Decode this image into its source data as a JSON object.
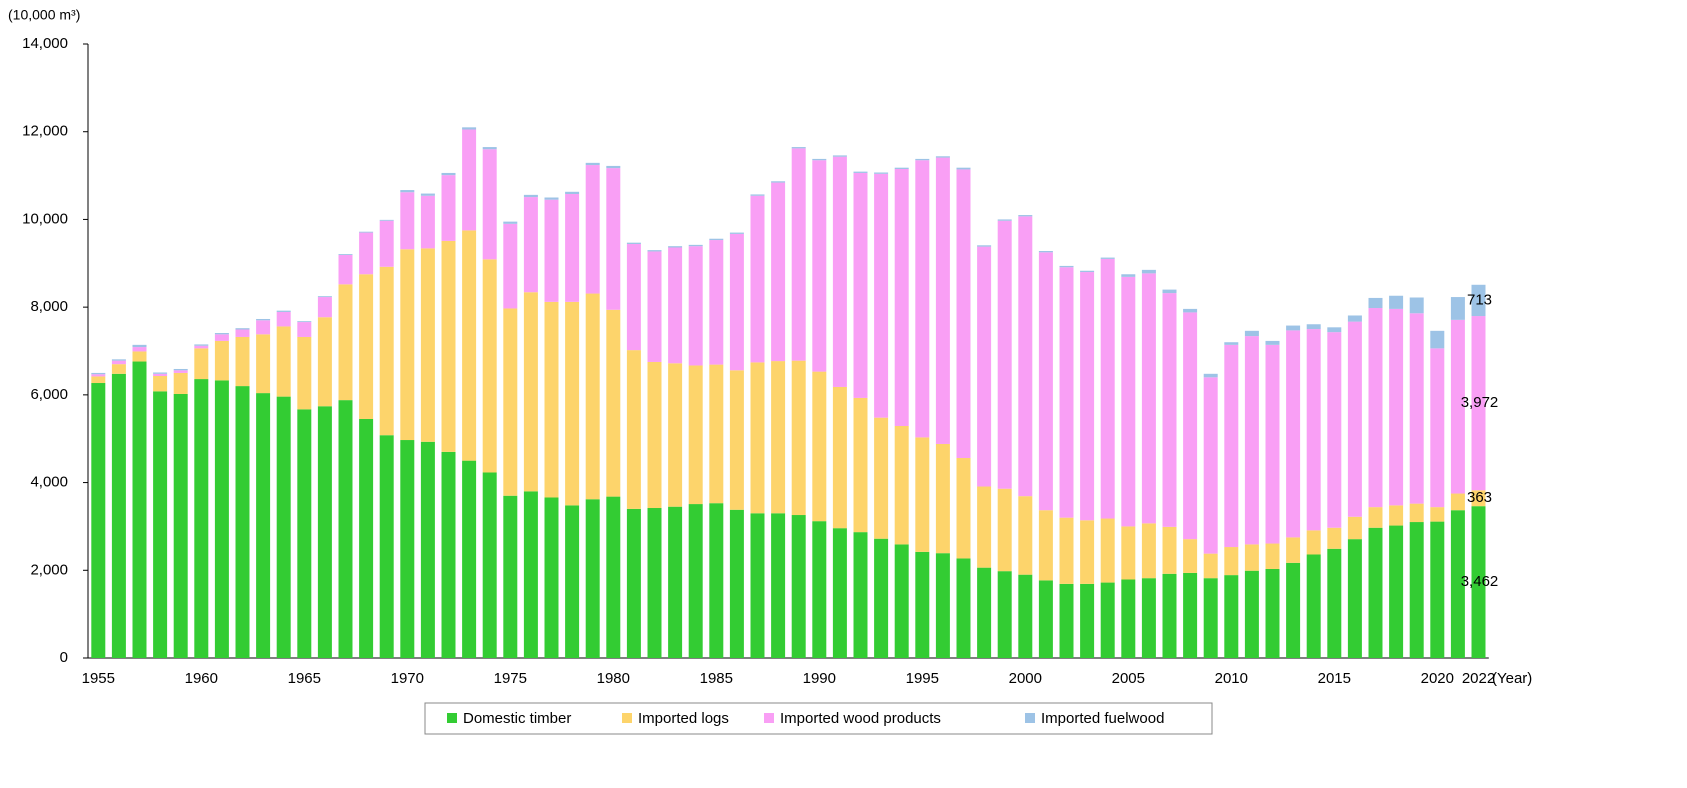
{
  "chart_data": {
    "type": "stacked-bar",
    "y_axis_label": "(10,000 m³)",
    "x_axis_label": "(Year)",
    "categories": [
      "1955",
      null,
      null,
      null,
      null,
      "1960",
      null,
      null,
      null,
      null,
      "1965",
      null,
      null,
      null,
      null,
      "1970",
      null,
      null,
      null,
      null,
      "1975",
      null,
      null,
      null,
      null,
      "1980",
      null,
      null,
      null,
      null,
      "1985",
      null,
      null,
      null,
      null,
      "1990",
      null,
      null,
      null,
      null,
      "1995",
      null,
      null,
      null,
      null,
      "2000",
      null,
      null,
      null,
      null,
      "2005",
      null,
      null,
      null,
      null,
      "2010",
      null,
      null,
      null,
      null,
      "2015",
      null,
      null,
      null,
      null,
      "2020",
      null,
      "2022"
    ],
    "ylim": [
      0,
      14000
    ],
    "yticks": [
      0,
      {
        "value": 2000,
        "label": "2,000"
      },
      {
        "value": 4000,
        "label": "4,000"
      },
      {
        "value": 6000,
        "label": "6,000"
      },
      {
        "value": 8000,
        "label": "8,000"
      },
      {
        "value": 10000,
        "label": "10,000"
      },
      {
        "value": 12000,
        "label": "12,000"
      },
      {
        "value": 14000,
        "label": "14,000"
      }
    ],
    "legend": "bottom",
    "series": [
      {
        "name": "Domestic timber",
        "color": "#33cc33",
        "values": [
          6270,
          6480,
          6760,
          6080,
          6020,
          6360,
          6330,
          6200,
          6040,
          5960,
          5670,
          5740,
          5880,
          5450,
          5080,
          4970,
          4930,
          4700,
          4500,
          4230,
          3700,
          3800,
          3660,
          3480,
          3620,
          3680,
          3400,
          3420,
          3450,
          3510,
          3530,
          3380,
          3300,
          3300,
          3260,
          3120,
          2960,
          2870,
          2720,
          2590,
          2420,
          2390,
          2270,
          2060,
          1980,
          1900,
          1770,
          1690,
          1690,
          1720,
          1790,
          1820,
          1920,
          1940,
          1820,
          1890,
          1990,
          2030,
          2170,
          2360,
          2490,
          2710,
          2970,
          3020,
          3100,
          3110,
          3370,
          3462
        ],
        "value_labels": [
          null,
          null,
          null,
          null,
          null,
          null,
          null,
          null,
          null,
          null,
          null,
          null,
          null,
          null,
          null,
          null,
          null,
          null,
          null,
          null,
          null,
          null,
          null,
          null,
          null,
          null,
          null,
          null,
          null,
          null,
          null,
          null,
          null,
          null,
          null,
          null,
          null,
          null,
          null,
          null,
          null,
          null,
          null,
          null,
          null,
          null,
          null,
          null,
          null,
          null,
          null,
          null,
          null,
          null,
          null,
          null,
          null,
          null,
          null,
          null,
          null,
          null,
          null,
          null,
          null,
          null,
          null,
          "3,462"
        ]
      },
      {
        "name": "Imported logs",
        "color": "#fdd46b",
        "values": [
          150,
          220,
          230,
          350,
          480,
          700,
          900,
          1120,
          1340,
          1600,
          1650,
          2030,
          2640,
          3300,
          3840,
          4350,
          4410,
          4810,
          5250,
          4860,
          4270,
          4540,
          4460,
          4640,
          4690,
          4260,
          3620,
          3330,
          3270,
          3160,
          3160,
          3180,
          3440,
          3470,
          3520,
          3410,
          3220,
          3060,
          2760,
          2700,
          2610,
          2490,
          2290,
          1850,
          1880,
          1790,
          1600,
          1510,
          1450,
          1460,
          1210,
          1250,
          1070,
          770,
          560,
          640,
          600,
          580,
          580,
          550,
          480,
          510,
          470,
          460,
          420,
          330,
          380,
          363
        ],
        "value_labels": [
          null,
          null,
          null,
          null,
          null,
          null,
          null,
          null,
          null,
          null,
          null,
          null,
          null,
          null,
          null,
          null,
          null,
          null,
          null,
          null,
          null,
          null,
          null,
          null,
          null,
          null,
          null,
          null,
          null,
          null,
          null,
          null,
          null,
          null,
          null,
          null,
          null,
          null,
          null,
          null,
          null,
          null,
          null,
          null,
          null,
          null,
          null,
          null,
          null,
          null,
          null,
          null,
          null,
          null,
          null,
          null,
          null,
          null,
          null,
          null,
          null,
          null,
          null,
          null,
          null,
          null,
          null,
          "363"
        ]
      },
      {
        "name": "Imported wood products",
        "color": "#f99ff5",
        "values": [
          50,
          80,
          100,
          50,
          60,
          60,
          150,
          170,
          320,
          330,
          340,
          460,
          670,
          950,
          1050,
          1300,
          1200,
          1500,
          2300,
          2510,
          1930,
          2170,
          2330,
          2460,
          2930,
          3230,
          2420,
          2520,
          2640,
          2720,
          2840,
          3110,
          3800,
          4070,
          4840,
          4820,
          5250,
          5130,
          5560,
          5860,
          6320,
          6530,
          6580,
          5470,
          6110,
          6380,
          5880,
          5710,
          5660,
          5920,
          5690,
          5700,
          5330,
          5170,
          4020,
          4610,
          4750,
          4530,
          4720,
          4590,
          4460,
          4450,
          4540,
          4480,
          4340,
          3620,
          3960,
          3972
        ],
        "value_labels": [
          null,
          null,
          null,
          null,
          null,
          null,
          null,
          null,
          null,
          null,
          null,
          null,
          null,
          null,
          null,
          null,
          null,
          null,
          null,
          null,
          null,
          null,
          null,
          null,
          null,
          null,
          null,
          null,
          null,
          null,
          null,
          null,
          null,
          null,
          null,
          null,
          null,
          null,
          null,
          null,
          null,
          null,
          null,
          null,
          null,
          null,
          null,
          null,
          null,
          null,
          null,
          null,
          null,
          null,
          null,
          null,
          null,
          null,
          null,
          null,
          null,
          null,
          null,
          null,
          null,
          null,
          null,
          "3,972"
        ]
      },
      {
        "name": "Imported fuelwood",
        "color": "#9dc3e6",
        "values": [
          30,
          30,
          50,
          30,
          30,
          30,
          30,
          30,
          30,
          30,
          20,
          20,
          20,
          20,
          20,
          50,
          50,
          50,
          50,
          50,
          50,
          50,
          50,
          50,
          50,
          50,
          30,
          30,
          30,
          30,
          30,
          30,
          30,
          30,
          30,
          30,
          30,
          30,
          30,
          30,
          30,
          30,
          40,
          30,
          30,
          30,
          30,
          30,
          30,
          30,
          60,
          80,
          80,
          80,
          80,
          60,
          120,
          90,
          110,
          110,
          110,
          140,
          230,
          300,
          360,
          400,
          520,
          713
        ],
        "value_labels": [
          null,
          null,
          null,
          null,
          null,
          null,
          null,
          null,
          null,
          null,
          null,
          null,
          null,
          null,
          null,
          null,
          null,
          null,
          null,
          null,
          null,
          null,
          null,
          null,
          null,
          null,
          null,
          null,
          null,
          null,
          null,
          null,
          null,
          null,
          null,
          null,
          null,
          null,
          null,
          null,
          null,
          null,
          null,
          null,
          null,
          null,
          null,
          null,
          null,
          null,
          null,
          null,
          null,
          null,
          null,
          null,
          null,
          null,
          null,
          null,
          null,
          null,
          null,
          null,
          null,
          null,
          null,
          "713"
        ]
      }
    ]
  }
}
